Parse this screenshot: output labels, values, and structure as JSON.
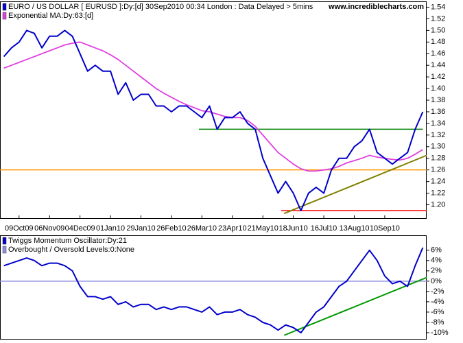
{
  "chart_data": [
    {
      "type": "line",
      "source": "www.incrediblecharts.com",
      "x": [
        0,
        1,
        2,
        3,
        4,
        5,
        6,
        7,
        8,
        9,
        10,
        11,
        12,
        13,
        14,
        15,
        16,
        17,
        18,
        19,
        20,
        21,
        22,
        23,
        24,
        25,
        26,
        27,
        28,
        29,
        30,
        31,
        32,
        33,
        34,
        35,
        36,
        37,
        38,
        39,
        40,
        41,
        42,
        43,
        44,
        45,
        46,
        47,
        48,
        49,
        50,
        51,
        52,
        53,
        54,
        55
      ],
      "xlim": [
        -0.5,
        55.5
      ],
      "xticks": [
        {
          "value": 2,
          "label": "09Oct09"
        },
        {
          "value": 6,
          "label": "06Nov09"
        },
        {
          "value": 10,
          "label": "04Dec09"
        },
        {
          "value": 14,
          "label": "01Jan10"
        },
        {
          "value": 18,
          "label": "29Jan10"
        },
        {
          "value": 22,
          "label": "26Feb10"
        },
        {
          "value": 26,
          "label": "26Mar10"
        },
        {
          "value": 30,
          "label": "23Apr10"
        },
        {
          "value": 34,
          "label": "21May10"
        },
        {
          "value": 38,
          "label": "18Jun10"
        },
        {
          "value": 42,
          "label": "16Jul10"
        },
        {
          "value": 46,
          "label": "13Aug10"
        },
        {
          "value": 50,
          "label": "10Sep10"
        }
      ],
      "ylim": [
        1.177,
        1.55
      ],
      "yticks": [
        {
          "value": 1.2,
          "label": "1.20"
        },
        1.22,
        1.24,
        1.26,
        1.28,
        {
          "value": 1.3,
          "label": "1.30"
        },
        1.32,
        1.34,
        1.36,
        1.38,
        {
          "value": 1.4,
          "label": "1.40"
        },
        1.42,
        1.44,
        1.46,
        1.48,
        {
          "value": 1.5,
          "label": "1.50"
        },
        1.52,
        1.54
      ],
      "series": [
        {
          "name": "EURO / US DOLLAR [ EURUSD ]:Dy:[d]  30Sep2010 00:34 London : Data Delayed > 5mins",
          "color": "#0000cc",
          "values": [
            1.455,
            1.47,
            1.48,
            1.5,
            1.495,
            1.47,
            1.49,
            1.49,
            1.5,
            1.49,
            1.46,
            1.43,
            1.44,
            1.43,
            1.43,
            1.39,
            1.41,
            1.38,
            1.39,
            1.39,
            1.37,
            1.37,
            1.36,
            1.37,
            1.37,
            1.36,
            1.35,
            1.37,
            1.33,
            1.35,
            1.35,
            1.36,
            1.34,
            1.33,
            1.28,
            1.25,
            1.22,
            1.24,
            1.22,
            1.19,
            1.22,
            1.23,
            1.22,
            1.26,
            1.28,
            1.28,
            1.3,
            1.31,
            1.33,
            1.29,
            1.28,
            1.27,
            1.28,
            1.29,
            1.33,
            1.36
          ]
        },
        {
          "name": "Exponential MA:Dy:63:[d]",
          "color": "#e040e0",
          "values": [
            1.435,
            1.44,
            1.445,
            1.45,
            1.455,
            1.46,
            1.465,
            1.47,
            1.475,
            1.478,
            1.48,
            1.475,
            1.47,
            1.465,
            1.458,
            1.45,
            1.44,
            1.43,
            1.42,
            1.41,
            1.4,
            1.392,
            1.385,
            1.378,
            1.372,
            1.367,
            1.362,
            1.36,
            1.356,
            1.352,
            1.35,
            1.35,
            1.345,
            1.335,
            1.32,
            1.305,
            1.29,
            1.28,
            1.27,
            1.262,
            1.258,
            1.258,
            1.26,
            1.262,
            1.266,
            1.272,
            1.276,
            1.28,
            1.285,
            1.282,
            1.28,
            1.278,
            1.277,
            1.28,
            1.287,
            1.295
          ]
        }
      ],
      "levels": [
        {
          "value": 1.33,
          "color": "#008000",
          "x": [
            25.6,
            55
          ]
        },
        {
          "value": 1.26,
          "color": "#ff9900",
          "x": [
            -0.5,
            55.5
          ]
        },
        {
          "value": 1.19,
          "color": "#ff0000",
          "x": [
            36.4,
            55.5
          ]
        }
      ],
      "trendlines": [
        {
          "color": "#808000",
          "x": [
            36.8,
            55.5
          ],
          "y": [
            1.185,
            1.285
          ]
        }
      ]
    },
    {
      "type": "line",
      "x": [
        0,
        1,
        2,
        3,
        4,
        5,
        6,
        7,
        8,
        9,
        10,
        11,
        12,
        13,
        14,
        15,
        16,
        17,
        18,
        19,
        20,
        21,
        22,
        23,
        24,
        25,
        26,
        27,
        28,
        29,
        30,
        31,
        32,
        33,
        34,
        35,
        36,
        37,
        38,
        39,
        40,
        41,
        42,
        43,
        44,
        45,
        46,
        47,
        48,
        49,
        50,
        51,
        52,
        53,
        54,
        55
      ],
      "xlim": [
        -0.5,
        55.5
      ],
      "ylim": [
        -11.2,
        8.9
      ],
      "yticks": [
        {
          "value": 6,
          "label": "6%"
        },
        {
          "value": 4,
          "label": "4%"
        },
        {
          "value": 2,
          "label": "2%"
        },
        {
          "value": 0,
          "label": "0%"
        },
        {
          "value": -2,
          "label": "-2%"
        },
        {
          "value": -4,
          "label": "-4%"
        },
        {
          "value": -6,
          "label": "-6%"
        },
        {
          "value": -8,
          "label": "-8%"
        },
        {
          "value": -10,
          "label": "-10%"
        }
      ],
      "series": [
        {
          "name": "Twiggs Momentum Oscillator:Dy:21",
          "color": "#0000cc",
          "values": [
            3,
            3.5,
            4,
            4.5,
            4,
            3,
            3.5,
            3.5,
            3,
            2,
            -1,
            -3,
            -3,
            -3.5,
            -3,
            -4.5,
            -4,
            -5,
            -4.5,
            -4.5,
            -5.5,
            -5,
            -5.5,
            -5,
            -5,
            -5.5,
            -6,
            -5,
            -6.5,
            -6,
            -6,
            -5.5,
            -6.5,
            -7,
            -8,
            -8.5,
            -9.5,
            -8.5,
            -9,
            -10,
            -8,
            -6,
            -5,
            -3,
            -1,
            0,
            2,
            4,
            6,
            4,
            1,
            -0.5,
            0,
            -1,
            3,
            6.5
          ]
        }
      ],
      "levels": [
        {
          "value": 0,
          "name": "Overbought / Oversold Levels:0:None",
          "color": "#9090e0",
          "x": [
            -0.5,
            55.5
          ]
        }
      ],
      "trendlines": [
        {
          "color": "#009900",
          "x": [
            36.8,
            55.5
          ],
          "y": [
            -10.5,
            0.7
          ]
        }
      ]
    }
  ]
}
